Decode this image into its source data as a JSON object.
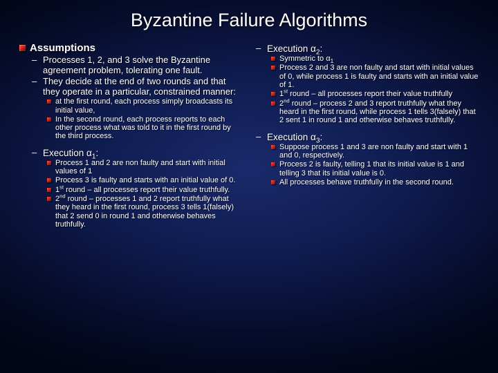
{
  "title": "Byzantine Failure Algorithms",
  "colors": {
    "bullet": "#c41810",
    "text": "#ffffff",
    "bg_center": "#1a2a6b",
    "bg_edge": "#020515"
  },
  "left": {
    "heading": "Assumptions",
    "subs": [
      "Processes 1, 2, and 3 solve the Byzantine agreement problem, tolerating one fault.",
      "They decide at the end of two rounds and that they operate in a particular, constrained manner:"
    ],
    "leaves1": [
      "at the first round, each process simply broadcasts its initial value,",
      "In the second round, each process reports to each other process what was told to it in the first round by the third process."
    ],
    "exec1_label_pre": "Execution α",
    "exec1_label_sub": "1",
    "exec1_label_post": ":",
    "exec1_items": [
      {
        "pre": "Process 1 and 2 are non faulty and start with initial values of 1",
        "sup": "",
        "post": ""
      },
      {
        "pre": "Process 3 is faulty and starts with an initial value of 0.",
        "sup": "",
        "post": ""
      },
      {
        "pre": "1",
        "sup": "st",
        "post": " round – all processes report their value truthfully."
      },
      {
        "pre": "2",
        "sup": "nd",
        "post": " round – processes 1 and 2 report truthfully what they heard in the first round, process 3 tells 1(falsely) that 2 send 0 in round 1 and otherwise behaves truthfully."
      }
    ]
  },
  "right": {
    "exec2_label_pre": "Execution α",
    "exec2_label_sub": "2",
    "exec2_label_post": ":",
    "exec2_items": [
      {
        "pre": "Symmetric to α",
        "sub": "1",
        "post": ""
      },
      {
        "pre": "Process 2 and 3 are non faulty and start with initial values of 0, while process 1 is faulty and starts with an initial value of 1.",
        "sub": "",
        "post": ""
      },
      {
        "pre": "1",
        "sup": "st",
        "post": " round – all processes report their value truthfully"
      },
      {
        "pre": "2",
        "sup": "nd",
        "post": " round – process 2 and 3 report truthfully what they heard in the first round, while process 1 tells 3(falsely) that 2 sent 1 in round 1 and otherwise behaves truthfully."
      }
    ],
    "exec3_label_pre": "Execution α",
    "exec3_label_sub": "3",
    "exec3_label_post": ":",
    "exec3_items": [
      "Suppose process 1 and 3 are non faulty and start with 1 and 0, respectively.",
      "Process 2 is faulty, telling 1 that its initial value is 1 and telling 3 that its initial value is 0.",
      "All processes behave truthfully in the second round."
    ]
  }
}
